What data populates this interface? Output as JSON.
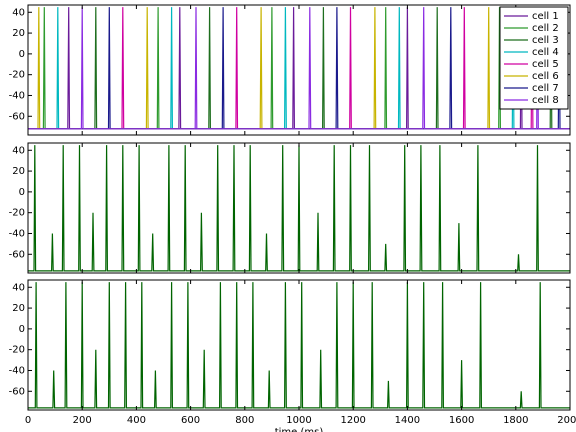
{
  "chart_data": [
    {
      "type": "line",
      "xlim": [
        0,
        2000
      ],
      "ylim": [
        -78,
        47
      ],
      "xticks": [
        0,
        200,
        400,
        600,
        800,
        1000,
        1200,
        1400,
        1600,
        1800,
        2000
      ],
      "yticks": [
        -60,
        -40,
        -20,
        0,
        20,
        40
      ],
      "xtick_labels": false,
      "legend": "upper right",
      "series": [
        {
          "name": "cell 1",
          "color": "#6a1b9a",
          "x": [
            0,
            147,
            150,
            153,
            557,
            560,
            563,
            977,
            980,
            983,
            1397,
            1400,
            1403,
            1817,
            1820,
            1823,
            2000
          ],
          "values": [
            -72,
            -72,
            45,
            -72,
            -72,
            45,
            -72,
            -72,
            45,
            -72,
            -72,
            45,
            -72,
            -72,
            45,
            -72,
            -72
          ]
        },
        {
          "name": "cell 2",
          "color": "#2e9b2e",
          "x": [
            0,
            57,
            60,
            63,
            477,
            480,
            483,
            897,
            900,
            903,
            1317,
            1320,
            1323,
            1737,
            1740,
            1743,
            2000
          ],
          "values": [
            -72,
            -72,
            45,
            -72,
            -72,
            45,
            -72,
            -72,
            45,
            -72,
            -72,
            45,
            -72,
            -72,
            45,
            -72,
            -72
          ]
        },
        {
          "name": "cell 3",
          "color": "#1e6e1e",
          "x": [
            0,
            247,
            250,
            253,
            667,
            670,
            673,
            1087,
            1090,
            1093,
            1507,
            1510,
            1513,
            1927,
            1930,
            1933,
            2000
          ],
          "values": [
            -72,
            -72,
            45,
            -72,
            -72,
            45,
            -72,
            -72,
            45,
            -72,
            -72,
            45,
            -72,
            -72,
            45,
            -72,
            -72
          ]
        },
        {
          "name": "cell 4",
          "color": "#00b8c0",
          "x": [
            0,
            107,
            110,
            113,
            527,
            530,
            533,
            947,
            950,
            953,
            1367,
            1370,
            1373,
            1787,
            1790,
            1793,
            2000
          ],
          "values": [
            -72,
            -72,
            45,
            -72,
            -72,
            45,
            -72,
            -72,
            45,
            -72,
            -72,
            45,
            -72,
            -72,
            45,
            -72,
            -72
          ]
        },
        {
          "name": "cell 5",
          "color": "#d000a0",
          "x": [
            0,
            347,
            350,
            353,
            767,
            770,
            773,
            1187,
            1190,
            1193,
            1607,
            1610,
            1613,
            1857,
            1860,
            1863,
            2000
          ],
          "values": [
            -72,
            -72,
            45,
            -72,
            -72,
            45,
            -72,
            -72,
            45,
            -72,
            -72,
            45,
            -72,
            -72,
            45,
            -72,
            -72
          ]
        },
        {
          "name": "cell 6",
          "color": "#c8b400",
          "x": [
            0,
            37,
            40,
            43,
            437,
            440,
            443,
            857,
            860,
            863,
            1277,
            1280,
            1283,
            1697,
            1700,
            1703,
            2000
          ],
          "values": [
            -72,
            -72,
            45,
            -72,
            -72,
            45,
            -72,
            -72,
            45,
            -72,
            -72,
            45,
            -72,
            -72,
            45,
            -72,
            -72
          ]
        },
        {
          "name": "cell 7",
          "color": "#1a1a8c",
          "x": [
            0,
            297,
            300,
            303,
            717,
            720,
            723,
            1137,
            1140,
            1143,
            1557,
            1560,
            1563,
            1957,
            1960,
            1963,
            2000
          ],
          "values": [
            -72,
            -72,
            45,
            -72,
            -72,
            45,
            -72,
            -72,
            45,
            -72,
            -72,
            45,
            -72,
            -72,
            45,
            -72,
            -72
          ]
        },
        {
          "name": "cell 8",
          "color": "#8a2be2",
          "x": [
            0,
            197,
            200,
            203,
            617,
            620,
            623,
            1037,
            1040,
            1043,
            1457,
            1460,
            1463,
            1877,
            1880,
            1883,
            2000
          ],
          "values": [
            -72,
            -72,
            45,
            -72,
            -72,
            45,
            -72,
            -72,
            45,
            -72,
            -72,
            45,
            -72,
            -72,
            45,
            -72,
            -72
          ]
        }
      ]
    },
    {
      "type": "line",
      "xlim": [
        0,
        2000
      ],
      "ylim": [
        -78,
        47
      ],
      "xticks": [
        0,
        200,
        400,
        600,
        800,
        1000,
        1200,
        1400,
        1600,
        1800,
        2000
      ],
      "yticks": [
        -60,
        -40,
        -20,
        0,
        20,
        40
      ],
      "xtick_labels": false,
      "series": [
        {
          "color": "#006400",
          "x": [
            0,
            22,
            25,
            28,
            87,
            90,
            93,
            127,
            130,
            133,
            187,
            190,
            193,
            237,
            240,
            243,
            287,
            290,
            293,
            347,
            350,
            353,
            407,
            410,
            413,
            457,
            460,
            463,
            517,
            520,
            523,
            577,
            580,
            583,
            637,
            640,
            643,
            697,
            700,
            703,
            757,
            760,
            763,
            817,
            820,
            823,
            877,
            880,
            883,
            937,
            940,
            943,
            997,
            1000,
            1003,
            1067,
            1070,
            1073,
            1127,
            1130,
            1133,
            1187,
            1190,
            1193,
            1257,
            1260,
            1263,
            1317,
            1320,
            1323,
            1387,
            1390,
            1393,
            1447,
            1450,
            1453,
            1517,
            1520,
            1523,
            1587,
            1590,
            1593,
            1657,
            1660,
            1663,
            1807,
            1810,
            1813,
            1877,
            1880,
            1883,
            2000
          ],
          "values": [
            -76,
            -76,
            45,
            -76,
            -76,
            -40,
            -76,
            -76,
            45,
            -76,
            -76,
            45,
            -76,
            -76,
            -20,
            -76,
            -76,
            45,
            -76,
            -76,
            45,
            -76,
            -76,
            45,
            -76,
            -76,
            -40,
            -76,
            -76,
            45,
            -76,
            -76,
            45,
            -76,
            -76,
            -20,
            -76,
            -76,
            45,
            -76,
            -76,
            45,
            -76,
            -76,
            45,
            -76,
            -76,
            -40,
            -76,
            -76,
            45,
            -76,
            -76,
            45,
            -76,
            -76,
            -20,
            -76,
            -76,
            45,
            -76,
            -76,
            45,
            -76,
            -76,
            45,
            -76,
            -76,
            -50,
            -76,
            -76,
            45,
            -76,
            -76,
            45,
            -76,
            -76,
            45,
            -76,
            -76,
            -30,
            -76,
            -76,
            45,
            -76,
            -76,
            -60,
            -76,
            -76,
            45,
            -76,
            -76
          ]
        }
      ]
    },
    {
      "type": "line",
      "xlim": [
        0,
        2000
      ],
      "ylim": [
        -78,
        47
      ],
      "xticks": [
        0,
        200,
        400,
        600,
        800,
        1000,
        1200,
        1400,
        1600,
        1800,
        2000
      ],
      "yticks": [
        -60,
        -40,
        -20,
        0,
        20,
        40
      ],
      "xtick_labels": true,
      "xlabel": "time (ms)",
      "series": [
        {
          "color": "#006400",
          "x": [
            0,
            27,
            30,
            33,
            92,
            95,
            98,
            137,
            140,
            143,
            197,
            200,
            203,
            247,
            250,
            253,
            297,
            300,
            303,
            357,
            360,
            363,
            417,
            420,
            423,
            467,
            470,
            473,
            527,
            530,
            533,
            587,
            590,
            593,
            647,
            650,
            653,
            707,
            710,
            713,
            767,
            770,
            773,
            827,
            830,
            833,
            887,
            890,
            893,
            947,
            950,
            953,
            1007,
            1010,
            1013,
            1077,
            1080,
            1083,
            1137,
            1140,
            1143,
            1197,
            1200,
            1203,
            1267,
            1270,
            1273,
            1327,
            1330,
            1333,
            1397,
            1400,
            1403,
            1457,
            1460,
            1463,
            1527,
            1530,
            1533,
            1597,
            1600,
            1603,
            1667,
            1670,
            1673,
            1817,
            1820,
            1823,
            1887,
            1890,
            1893,
            2000
          ],
          "values": [
            -76,
            -76,
            45,
            -76,
            -76,
            -40,
            -76,
            -76,
            45,
            -76,
            -76,
            45,
            -76,
            -76,
            -20,
            -76,
            -76,
            45,
            -76,
            -76,
            45,
            -76,
            -76,
            45,
            -76,
            -76,
            -40,
            -76,
            -76,
            45,
            -76,
            -76,
            45,
            -76,
            -76,
            -20,
            -76,
            -76,
            45,
            -76,
            -76,
            45,
            -76,
            -76,
            45,
            -76,
            -76,
            -40,
            -76,
            -76,
            45,
            -76,
            -76,
            45,
            -76,
            -76,
            -20,
            -76,
            -76,
            45,
            -76,
            -76,
            45,
            -76,
            -76,
            45,
            -76,
            -76,
            -50,
            -76,
            -76,
            45,
            -76,
            -76,
            45,
            -76,
            -76,
            45,
            -76,
            -76,
            -30,
            -76,
            -76,
            45,
            -76,
            -76,
            -60,
            -76,
            -76,
            45,
            -76,
            -76
          ]
        }
      ]
    }
  ]
}
